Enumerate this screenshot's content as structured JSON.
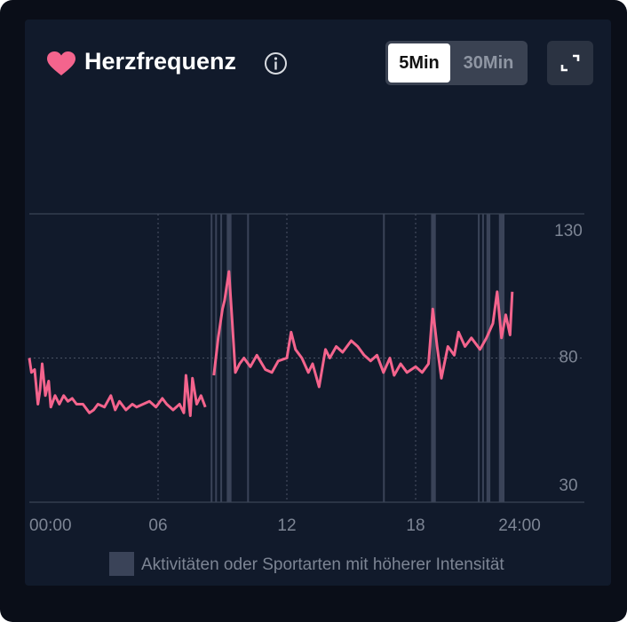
{
  "header": {
    "title": "Herzfrequenz",
    "toggle": [
      "5Min",
      "30Min"
    ]
  },
  "chart_data": {
    "type": "line",
    "x": [
      0,
      0.1,
      0.25,
      0.4,
      0.5,
      0.6,
      0.75,
      0.9,
      1.0,
      1.2,
      1.4,
      1.6,
      1.8,
      2.0,
      2.2,
      2.5,
      2.8,
      3.0,
      3.2,
      3.5,
      3.8,
      4.0,
      4.2,
      4.5,
      4.8,
      5.0,
      5.3,
      5.6,
      5.9,
      6.2,
      6.4,
      6.7,
      7.0,
      7.2,
      7.3,
      7.5,
      7.6,
      7.8,
      8.0,
      8.2,
      8.4,
      8.6,
      8.8,
      9.0,
      9.1,
      9.3,
      9.45,
      9.6,
      9.8,
      10.0,
      10.3,
      10.6,
      11.0,
      11.3,
      11.6,
      12.0,
      12.2,
      12.4,
      12.7,
      13.0,
      13.2,
      13.5,
      13.8,
      14.0,
      14.3,
      14.6,
      15.0,
      15.3,
      15.6,
      15.9,
      16.2,
      16.5,
      16.8,
      17.0,
      17.3,
      17.6,
      18.0,
      18.3,
      18.6,
      18.8,
      19.0,
      19.2,
      19.5,
      19.8,
      20.0,
      20.3,
      20.6,
      21.0,
      21.3,
      21.6,
      21.8,
      22.0,
      22.2,
      22.4,
      22.5
    ],
    "series": [
      {
        "name": "Herzfrequenz",
        "color": "#f4648d",
        "values": [
          80,
          75,
          76,
          64,
          69,
          78,
          67,
          72,
          63,
          67,
          64,
          67,
          65,
          66,
          64,
          64,
          61,
          62,
          64,
          63,
          67,
          62,
          65,
          62,
          64,
          63,
          64,
          65,
          63,
          66,
          64,
          62,
          64,
          61,
          74,
          60,
          73,
          64,
          67,
          63,
          null,
          74,
          87,
          97,
          100,
          110,
          93,
          75,
          78,
          80,
          77,
          81,
          76,
          75,
          79,
          80,
          89,
          83,
          80,
          75,
          78,
          70,
          83,
          80,
          84,
          82,
          86,
          84,
          81,
          79,
          81,
          75,
          80,
          74,
          78,
          75,
          77,
          75,
          78,
          97,
          84,
          73,
          84,
          81,
          89,
          84,
          87,
          83,
          87,
          92,
          103,
          87,
          95,
          88,
          103
        ]
      }
    ],
    "xlim": [
      0,
      24
    ],
    "xticks": [
      {
        "value": 0,
        "label": "00:00"
      },
      {
        "value": 6,
        "label": "06"
      },
      {
        "value": 12,
        "label": "12"
      },
      {
        "value": 18,
        "label": "18"
      },
      {
        "value": 24,
        "label": "24:00"
      }
    ],
    "ylim": [
      30,
      130
    ],
    "yticks": [
      30,
      80,
      130
    ],
    "activity_periods": [
      [
        8.45,
        8.52
      ],
      [
        8.66,
        8.73
      ],
      [
        8.9,
        8.98
      ],
      [
        9.2,
        9.42
      ],
      [
        10.15,
        10.22
      ],
      [
        16.48,
        16.55
      ],
      [
        18.72,
        18.94
      ],
      [
        20.9,
        20.97
      ],
      [
        21.1,
        21.18
      ],
      [
        21.3,
        21.48
      ],
      [
        21.88,
        22.14
      ]
    ],
    "activity_color": "#3a4358",
    "legend_label": "Aktivitäten oder Sportarten mit höherer Intensität"
  }
}
